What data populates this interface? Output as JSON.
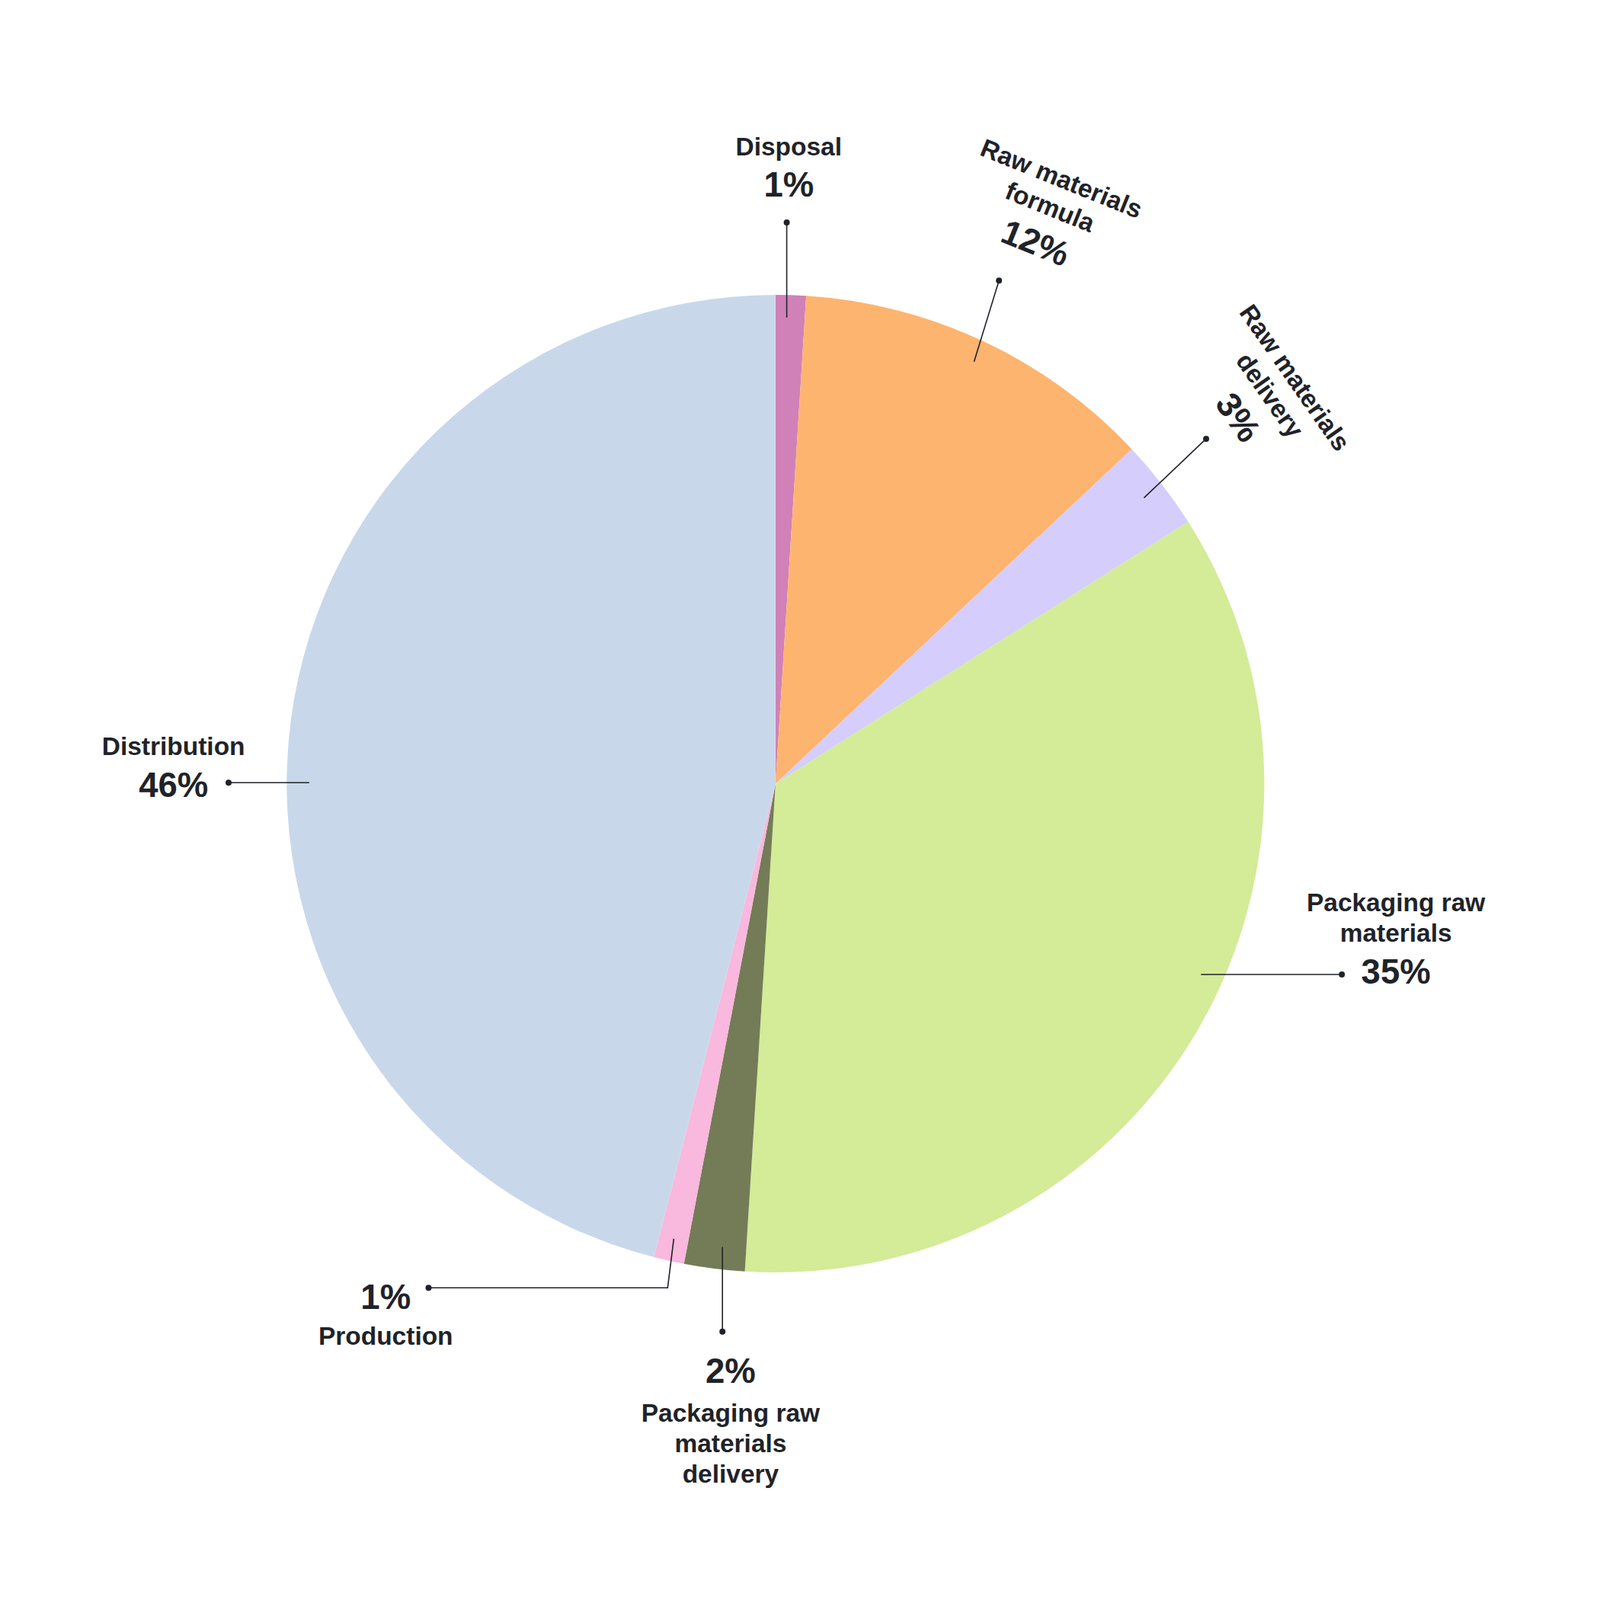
{
  "chart_data": {
    "type": "pie",
    "categories": [
      "Disposal",
      "Raw materials formula",
      "Raw materials delivery",
      "Packaging raw materials",
      "Packaging raw materials delivery",
      "Production",
      "Distribution"
    ],
    "values": [
      1,
      12,
      3,
      35,
      2,
      1,
      46
    ],
    "value_labels": [
      "1%",
      "12%",
      "3%",
      "35%",
      "2%",
      "1%",
      "46%"
    ],
    "colors": [
      "#d081b8",
      "#fdb46f",
      "#d5cdfb",
      "#d4eb98",
      "#737c56",
      "#f9b8dd",
      "#c8d8ea"
    ],
    "data_labels": true
  }
}
